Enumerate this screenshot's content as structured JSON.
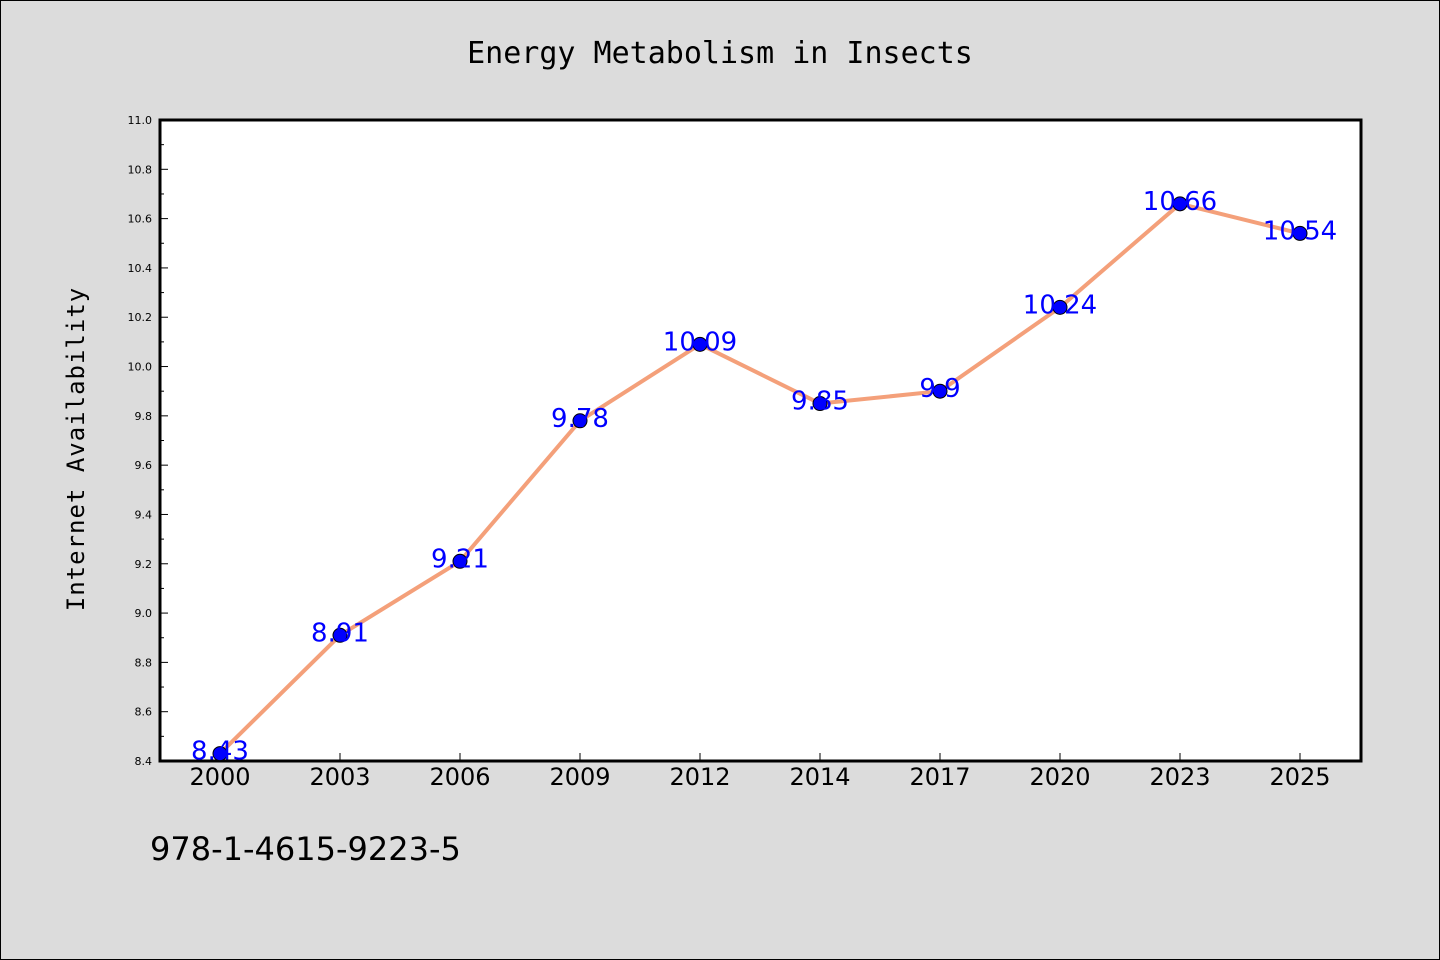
{
  "chart_data": {
    "type": "line",
    "title": "Energy Metabolism in Insects",
    "xlabel": "",
    "ylabel": "Internet Availability",
    "categories": [
      "2000",
      "2003",
      "2006",
      "2009",
      "2012",
      "2014",
      "2017",
      "2020",
      "2023",
      "2025"
    ],
    "series": [
      {
        "values": [
          8.43,
          8.91,
          9.21,
          9.78,
          10.09,
          9.85,
          9.9,
          10.24,
          10.66,
          10.54
        ],
        "labels": [
          "8.43",
          "8.91",
          "9.21",
          "9.78",
          "10.09",
          "9.85",
          "9.9",
          "10.24",
          "10.66",
          "10.54"
        ],
        "line_color": "#f4a07a",
        "marker_color": "#0000ff",
        "label_color": "#0000ff"
      }
    ],
    "ylim": [
      8.4,
      11.0
    ],
    "yticks": [
      "8.4",
      "8.6",
      "8.8",
      "9.0",
      "9.2",
      "9.4",
      "9.6",
      "9.8",
      "10.0",
      "10.2",
      "10.4",
      "10.6",
      "10.8",
      "11.0"
    ],
    "grid": false,
    "legend": "none"
  },
  "footer": {
    "isbn": "978-1-4615-9223-5"
  },
  "colors": {
    "background": "#dcdcdc",
    "plot_background": "#ffffff"
  }
}
